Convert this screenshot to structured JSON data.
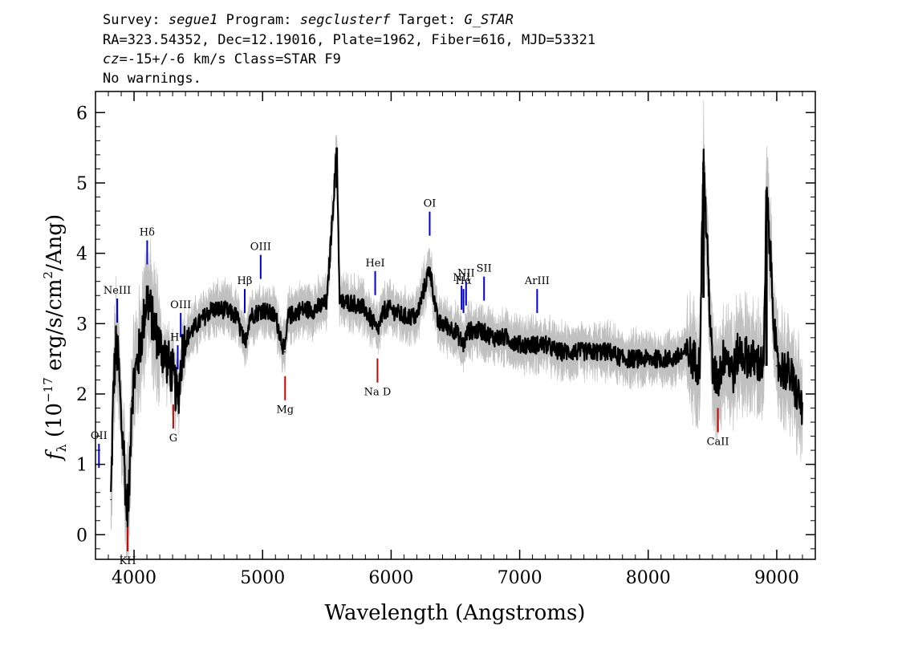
{
  "header": {
    "line1": {
      "survey_label": "Survey:",
      "survey": "segue1",
      "program_label": "Program:",
      "program": "segclusterf",
      "target_label": "Target:",
      "target": "G_STAR"
    },
    "line2": "RA=323.54352, Dec=12.19016, Plate=1962, Fiber=616, MJD=53321",
    "line3": {
      "cz_label": "cz",
      "cz_value": "=-15+/-6",
      "rest": " km/s Class=STAR F9"
    },
    "line4": "No warnings."
  },
  "colors": {
    "flux": "#000000",
    "error": "#c0c0c0",
    "emission_marker": "#0000cc",
    "absorption_marker": "#cc0000"
  },
  "chart_data": {
    "type": "line",
    "xlabel": "Wavelength (Angstroms)",
    "ylabel": "f_λ (10^-17 erg/s/cm^2/Ang)",
    "xlim": [
      3700,
      9300
    ],
    "ylim": [
      -0.35,
      6.3
    ],
    "x_ticks": [
      4000,
      5000,
      6000,
      7000,
      8000,
      9000
    ],
    "y_ticks": [
      0,
      1,
      2,
      3,
      4,
      5,
      6
    ],
    "grid": false,
    "series": [
      {
        "x": [
          3820,
          3840,
          3860,
          3880,
          3900,
          3920,
          3940,
          3960,
          3980,
          4000,
          4050,
          4101,
          4150,
          4200,
          4250,
          4300,
          4340,
          4380,
          4450,
          4500,
          4600,
          4700,
          4800,
          4861,
          4900,
          5000,
          5100,
          5172,
          5200,
          5300,
          5400,
          5500,
          5577,
          5600,
          5700,
          5800,
          5893,
          5950,
          6000,
          6100,
          6200,
          6300,
          6363,
          6400,
          6500,
          6563,
          6600,
          6700,
          6800,
          6900,
          7000,
          7100,
          7200,
          7300,
          7400,
          7500,
          7600,
          7700,
          7800,
          7900,
          8000,
          8100,
          8200,
          8300,
          8400,
          8430,
          8500,
          8542,
          8600,
          8662,
          8700,
          8800,
          8900,
          8920,
          9000,
          9100,
          9200
        ],
        "values": [
          0.5,
          2.1,
          2.7,
          2.4,
          1.6,
          1.2,
          0.4,
          0.5,
          1.9,
          2.2,
          2.7,
          3.4,
          3.0,
          2.7,
          2.5,
          2.3,
          1.9,
          2.7,
          2.9,
          3.0,
          3.2,
          3.2,
          3.1,
          2.7,
          3.1,
          3.2,
          3.1,
          2.6,
          3.1,
          3.2,
          3.2,
          3.3,
          5.5,
          3.3,
          3.3,
          3.2,
          2.9,
          3.2,
          3.2,
          3.1,
          3.1,
          3.8,
          3.0,
          3.0,
          2.9,
          2.7,
          2.9,
          2.9,
          2.8,
          2.8,
          2.7,
          2.7,
          2.7,
          2.6,
          2.6,
          2.6,
          2.6,
          2.6,
          2.5,
          2.5,
          2.5,
          2.5,
          2.5,
          2.6,
          2.4,
          5.3,
          2.3,
          2.2,
          2.6,
          2.3,
          2.6,
          2.5,
          2.4,
          4.9,
          2.4,
          2.3,
          1.8
        ]
      }
    ],
    "annotations": {
      "emission_lines": [
        {
          "label": "OII",
          "wavelength": 3727
        },
        {
          "label": "NeIII",
          "wavelength": 3869
        },
        {
          "label": "Hδ",
          "wavelength": 4102
        },
        {
          "label": "Hγ",
          "wavelength": 4340
        },
        {
          "label": "OIII",
          "wavelength": 4363
        },
        {
          "label": "Hβ",
          "wavelength": 4861
        },
        {
          "label": "OIII",
          "wavelength": 4985
        },
        {
          "label": "HeI",
          "wavelength": 5876
        },
        {
          "label": "OI",
          "wavelength": 6300
        },
        {
          "label": "NII",
          "wavelength": 6548
        },
        {
          "label": "Hα",
          "wavelength": 6563
        },
        {
          "label": "NII",
          "wavelength": 6583
        },
        {
          "label": "SII",
          "wavelength": 6723
        },
        {
          "label": "ArIII",
          "wavelength": 7136
        }
      ],
      "absorption_lines": [
        {
          "label": "KH",
          "wavelength": 3950
        },
        {
          "label": "G",
          "wavelength": 4305
        },
        {
          "label": "Mg",
          "wavelength": 5175
        },
        {
          "label": "Na D",
          "wavelength": 5894
        },
        {
          "label": "CaII",
          "wavelength": 8542
        }
      ]
    }
  }
}
